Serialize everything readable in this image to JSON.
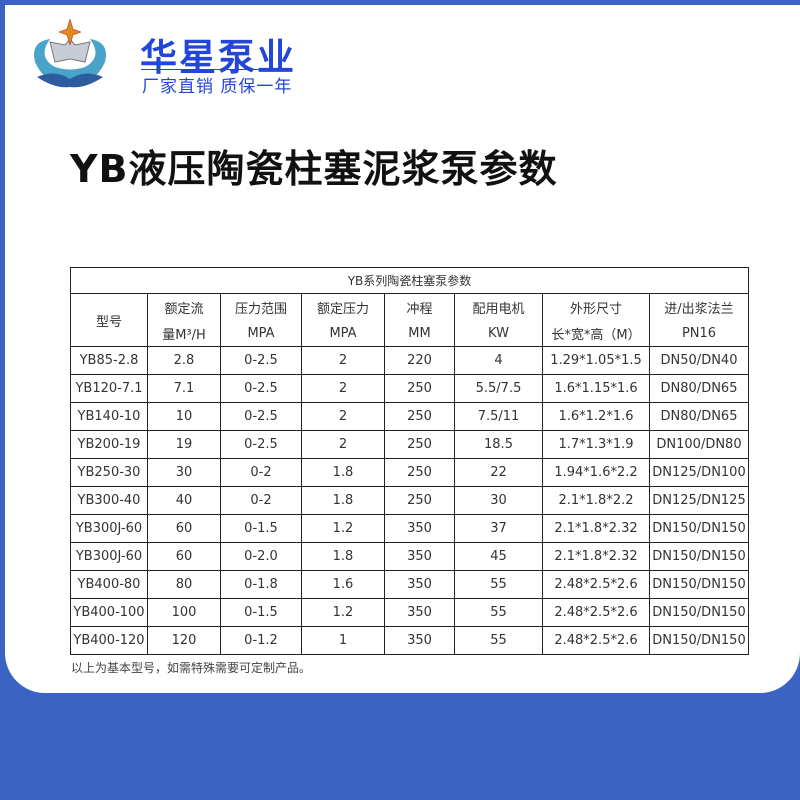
{
  "brand": {
    "name": "华星泵业",
    "slogan": "厂家直销 质保一年",
    "colors": {
      "brand": "#2446d8",
      "frame": "#3a63c4"
    }
  },
  "title": "YB液压陶瓷柱塞泥浆泵参数",
  "table": {
    "caption": "YB系列陶瓷柱塞泵参数",
    "headers": [
      [
        "型号",
        ""
      ],
      [
        "额定流",
        "量M³/H"
      ],
      [
        "压力范围",
        "MPA"
      ],
      [
        "额定压力",
        "MPA"
      ],
      [
        "冲程",
        "MM"
      ],
      [
        "配用电机",
        "KW"
      ],
      [
        "外形尺寸",
        "长*宽*高（M）"
      ],
      [
        "进/出浆法兰",
        "PN16"
      ]
    ],
    "rows": [
      [
        "YB85-2.8",
        "2.8",
        "0-2.5",
        "2",
        "220",
        "4",
        "1.29*1.05*1.5",
        "DN50/DN40"
      ],
      [
        "YB120-7.1",
        "7.1",
        "0-2.5",
        "2",
        "250",
        "5.5/7.5",
        "1.6*1.15*1.6",
        "DN80/DN65"
      ],
      [
        "YB140-10",
        "10",
        "0-2.5",
        "2",
        "250",
        "7.5/11",
        "1.6*1.2*1.6",
        "DN80/DN65"
      ],
      [
        "YB200-19",
        "19",
        "0-2.5",
        "2",
        "250",
        "18.5",
        "1.7*1.3*1.9",
        "DN100/DN80"
      ],
      [
        "YB250-30",
        "30",
        "0-2",
        "1.8",
        "250",
        "22",
        "1.94*1.6*2.2",
        "DN125/DN100"
      ],
      [
        "YB300-40",
        "40",
        "0-2",
        "1.8",
        "250",
        "30",
        "2.1*1.8*2.2",
        "DN125/DN125"
      ],
      [
        "YB300J-60",
        "60",
        "0-1.5",
        "1.2",
        "350",
        "37",
        "2.1*1.8*2.32",
        "DN150/DN150"
      ],
      [
        "YB300J-60",
        "60",
        "0-2.0",
        "1.8",
        "350",
        "45",
        "2.1*1.8*2.32",
        "DN150/DN150"
      ],
      [
        "YB400-80",
        "80",
        "0-1.8",
        "1.6",
        "350",
        "55",
        "2.48*2.5*2.6",
        "DN150/DN150"
      ],
      [
        "YB400-100",
        "100",
        "0-1.5",
        "1.2",
        "350",
        "55",
        "2.48*2.5*2.6",
        "DN150/DN150"
      ],
      [
        "YB400-120",
        "120",
        "0-1.2",
        "1",
        "350",
        "55",
        "2.48*2.5*2.6",
        "DN150/DN150"
      ]
    ]
  },
  "note": "以上为基本型号，如需特殊需要可定制产品。"
}
